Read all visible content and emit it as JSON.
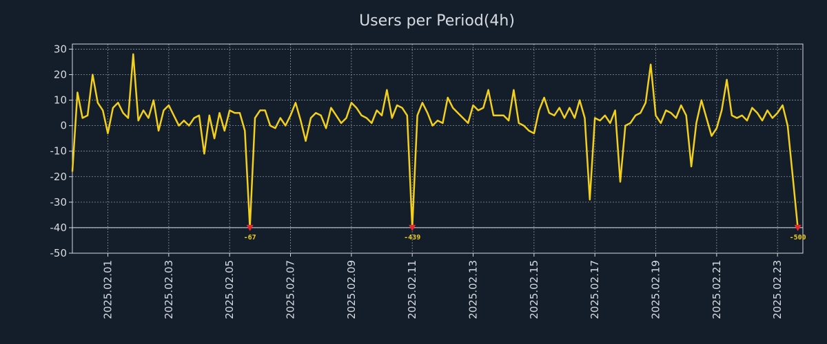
{
  "chart_data": {
    "type": "line",
    "title": "Users per Period(4h)",
    "xlabel": "",
    "ylabel": "",
    "ylim": [
      -50,
      32
    ],
    "yticks": [
      30,
      20,
      10,
      0,
      -10,
      -20,
      -30,
      -40,
      -50
    ],
    "xlim": [
      0,
      144
    ],
    "xticks": [
      {
        "label": "2025.02.01",
        "x": 7
      },
      {
        "label": "2025.02.03",
        "x": 19
      },
      {
        "label": "2025.02.05",
        "x": 31
      },
      {
        "label": "2025.02.07",
        "x": 43
      },
      {
        "label": "2025.02.09",
        "x": 55
      },
      {
        "label": "2025.02.11",
        "x": 67
      },
      {
        "label": "2025.02.13",
        "x": 79
      },
      {
        "label": "2025.02.15",
        "x": 91
      },
      {
        "label": "2025.02.17",
        "x": 103
      },
      {
        "label": "2025.02.19",
        "x": 115
      },
      {
        "label": "2025.02.21",
        "x": 127
      },
      {
        "label": "2025.02.23",
        "x": 139
      }
    ],
    "grid": true,
    "clip_line": -40,
    "series": [
      {
        "name": "Users",
        "color": "#f2d01c",
        "values": [
          -18,
          13,
          3,
          4,
          20,
          9,
          6,
          -3,
          7,
          9,
          5,
          3,
          28,
          2,
          6,
          3,
          10,
          -2,
          6,
          8,
          4,
          0,
          2,
          0,
          3,
          4,
          -11,
          4,
          -5,
          5,
          -2,
          6,
          5,
          5,
          -2,
          -40,
          3,
          6,
          6,
          0,
          -1,
          3,
          0,
          4,
          9,
          2,
          -6,
          3,
          5,
          4,
          -1,
          7,
          4,
          1,
          3,
          9,
          7,
          4,
          3,
          1,
          6,
          4,
          14,
          3,
          8,
          7,
          4,
          -40,
          4,
          9,
          5,
          0,
          2,
          1,
          11,
          7,
          5,
          3,
          1,
          8,
          6,
          7,
          14,
          4,
          4,
          4,
          2,
          14,
          1,
          0,
          -2,
          -3,
          6,
          11,
          5,
          4,
          7,
          3,
          7,
          3,
          10,
          3,
          -29,
          3,
          2,
          4,
          1,
          6,
          -22,
          0,
          1,
          4,
          5,
          9,
          24,
          4,
          1,
          6,
          5,
          3,
          8,
          4,
          -16,
          1,
          10,
          3,
          -4,
          -1,
          6,
          18,
          4,
          3,
          4,
          2,
          7,
          5,
          2,
          6,
          3,
          5,
          8,
          0,
          -20,
          -40
        ]
      }
    ],
    "annotations": [
      {
        "x": 35,
        "y": -40,
        "label": "-67"
      },
      {
        "x": 67,
        "y": -40,
        "label": "-439"
      },
      {
        "x": 143,
        "y": -40,
        "label": "-500"
      }
    ],
    "colors": {
      "background": "#141e2b",
      "axis": "#d6dbe0",
      "grid": "#8a939e",
      "marker": "#e8282e",
      "clip_line": "#e0e4e8"
    }
  }
}
